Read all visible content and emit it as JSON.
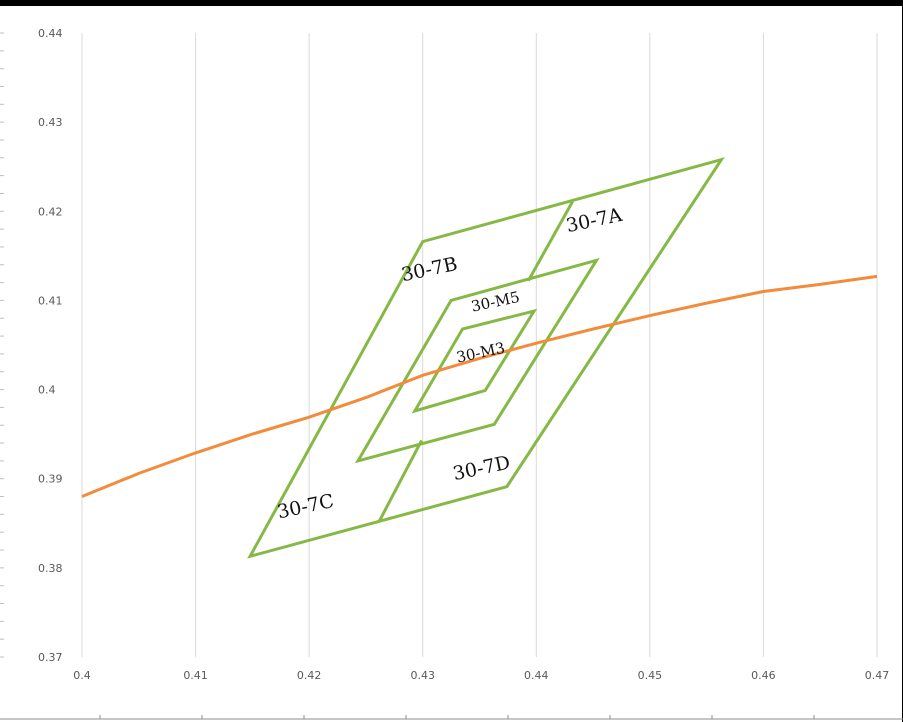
{
  "chart_data": {
    "type": "line",
    "title": "",
    "xlabel": "",
    "ylabel": "",
    "xlim": [
      0.4,
      0.47
    ],
    "ylim": [
      0.37,
      0.44
    ],
    "x_ticks": [
      "0.4",
      "0.41",
      "0.42",
      "0.43",
      "0.44",
      "0.45",
      "0.46",
      "0.47"
    ],
    "y_ticks": [
      "0.37",
      "0.38",
      "0.39",
      "0.4",
      "0.41",
      "0.42",
      "0.43",
      "0.44"
    ],
    "grid": "vertical",
    "legend": "none",
    "colors": {
      "curve": "#F28C3C",
      "regions": "#86B845",
      "grid": "#D9D9D9",
      "frame": "#000000"
    },
    "curve": {
      "x": [
        0.4,
        0.405,
        0.41,
        0.415,
        0.42,
        0.425,
        0.43,
        0.435,
        0.44,
        0.445,
        0.45,
        0.455,
        0.46,
        0.465,
        0.47
      ],
      "y": [
        0.388,
        0.3906,
        0.3929,
        0.395,
        0.3969,
        0.3991,
        0.4016,
        0.4035,
        0.4052,
        0.4068,
        0.4083,
        0.4097,
        0.411,
        0.4118,
        0.4127
      ]
    },
    "regions": [
      {
        "name": "outer",
        "x": [
          0.4148,
          0.43,
          0.4563,
          0.4374
        ],
        "y": [
          0.3813,
          0.4166,
          0.4258,
          0.3891
        ]
      },
      {
        "name": "middle",
        "x": [
          0.4243,
          0.4325,
          0.4453,
          0.4363
        ],
        "y": [
          0.392,
          0.41,
          0.4145,
          0.3961
        ]
      },
      {
        "name": "inner",
        "x": [
          0.4293,
          0.4335,
          0.4398,
          0.4355
        ],
        "y": [
          0.3976,
          0.4068,
          0.4088,
          0.3999
        ]
      },
      {
        "name": "divider-top",
        "x": [
          0.4432,
          0.4393
        ],
        "y": [
          0.4211,
          0.4122
        ]
      },
      {
        "name": "divider-bottom",
        "x": [
          0.4262,
          0.4299
        ],
        "y": [
          0.3853,
          0.3943
        ]
      }
    ],
    "annotations": [
      {
        "text": "30-7A",
        "x": 0.4452,
        "y": 0.4183
      },
      {
        "text": "30-7B",
        "x": 0.4307,
        "y": 0.4128
      },
      {
        "text": "30-M5",
        "x": 0.4365,
        "y": 0.4093
      },
      {
        "text": "30-M3",
        "x": 0.4352,
        "y": 0.4036
      },
      {
        "text": "30-7D",
        "x": 0.4353,
        "y": 0.3905
      },
      {
        "text": "30-7C",
        "x": 0.4198,
        "y": 0.3862
      }
    ]
  }
}
